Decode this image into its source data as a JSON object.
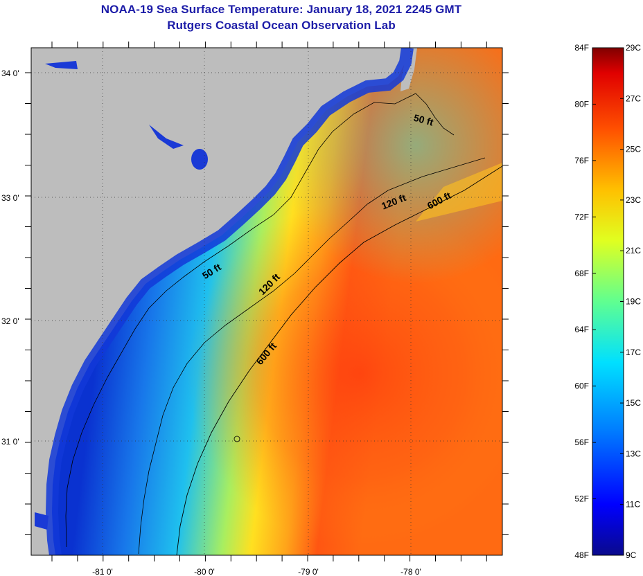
{
  "header": {
    "title": "NOAA-19 Sea Surface Temperature:  January 18, 2021 2245 GMT",
    "subtitle": "Rutgers Coastal Ocean Observation Lab"
  },
  "map": {
    "lat_labels": [
      "34 0'",
      "33 0'",
      "32 0'",
      "31 0'"
    ],
    "lon_labels": [
      "-81 0'",
      "-80 0'",
      "-79 0'",
      "-78 0'"
    ],
    "contour_labels": [
      "50 ft",
      "120 ft",
      "600 ft",
      "50 ft",
      "120 ft",
      "600 ft"
    ],
    "colors": {
      "land": "#bdbdbd",
      "cold": "#0d3bd8",
      "mid": "#1cc0f0",
      "warm": "#ffd21a",
      "hot": "#ff4a10"
    }
  },
  "colorbar": {
    "fahrenheit": [
      "84F",
      "80F",
      "76F",
      "72F",
      "68F",
      "64F",
      "60F",
      "56F",
      "52F",
      "48F"
    ],
    "celsius": [
      "29C",
      "27C",
      "25C",
      "23C",
      "21C",
      "19C",
      "17C",
      "15C",
      "13C",
      "11C",
      "9C"
    ]
  }
}
